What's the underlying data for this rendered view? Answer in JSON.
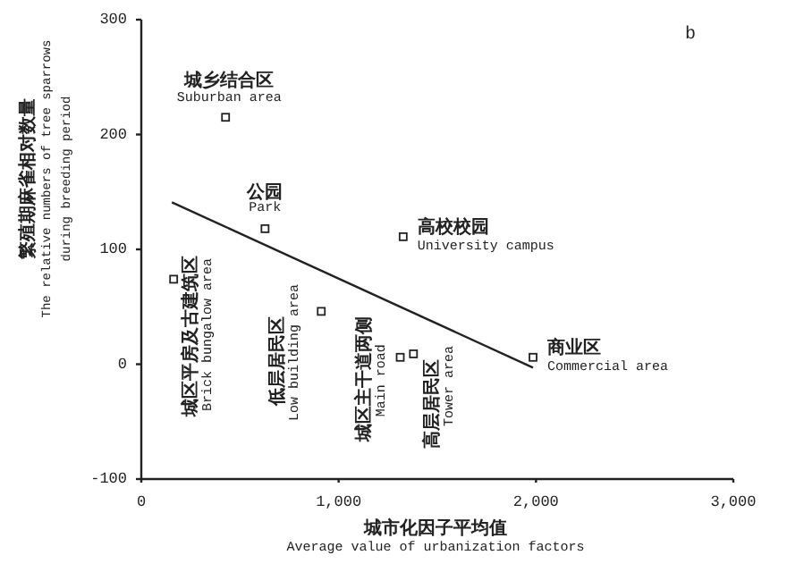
{
  "chart_data": {
    "type": "scatter",
    "title": "b",
    "xlabel": "城市化因子平均值\nAverage value of urbanization factors",
    "ylabel": "繁殖期麻雀相对数量\nThe relative numbers of tree sparrows\nduring breeding period",
    "xlim": [
      0,
      3000
    ],
    "ylim": [
      -100,
      300
    ],
    "xticks": [
      0,
      {
        "value": 1000,
        "label": "1,000"
      },
      {
        "value": 2000,
        "label": "2,000"
      },
      {
        "value": 3000,
        "label": "3,000"
      }
    ],
    "yticks": [
      -100,
      0,
      100,
      200,
      300
    ],
    "grid": false,
    "marker": "square",
    "series": [
      {
        "color": "#222222",
        "x": [
          427,
          627,
          164,
          912,
          1312,
          1379,
          1327,
          1985
        ],
        "values": [
          215,
          118,
          74,
          46,
          6,
          9,
          111,
          6
        ]
      },
      {
        "type": "line",
        "color": "#222222",
        "marker": "none",
        "x": [
          155,
          1985
        ],
        "values": [
          141,
          -3
        ]
      }
    ],
    "annotations": [
      {
        "text": "城乡结合区",
        "x": 427,
        "y": 215
      },
      {
        "text": "Suburban area",
        "x": 427,
        "y": 215
      },
      {
        "text": "公园",
        "x": 627,
        "y": 118
      },
      {
        "text": "Park",
        "x": 627,
        "y": 118
      },
      {
        "text": "城区平房及古建筑区",
        "x": 164,
        "y": 74
      },
      {
        "text": "Brick bungalow area",
        "x": 164,
        "y": 74
      },
      {
        "text": "低层居民区",
        "x": 912,
        "y": 46
      },
      {
        "text": "Low building area",
        "x": 912,
        "y": 46
      },
      {
        "text": "城区主干道两侧",
        "x": 1312,
        "y": 6
      },
      {
        "text": "Main road",
        "x": 1312,
        "y": 6
      },
      {
        "text": "高层居民区",
        "x": 1379,
        "y": 9
      },
      {
        "text": "Tower area",
        "x": 1379,
        "y": 9
      },
      {
        "text": "高校校园",
        "x": 1327,
        "y": 111
      },
      {
        "text": "University campus",
        "x": 1327,
        "y": 111
      },
      {
        "text": "商业区",
        "x": 1985,
        "y": 6
      },
      {
        "text": "Commercial area",
        "x": 1985,
        "y": 6
      }
    ]
  }
}
